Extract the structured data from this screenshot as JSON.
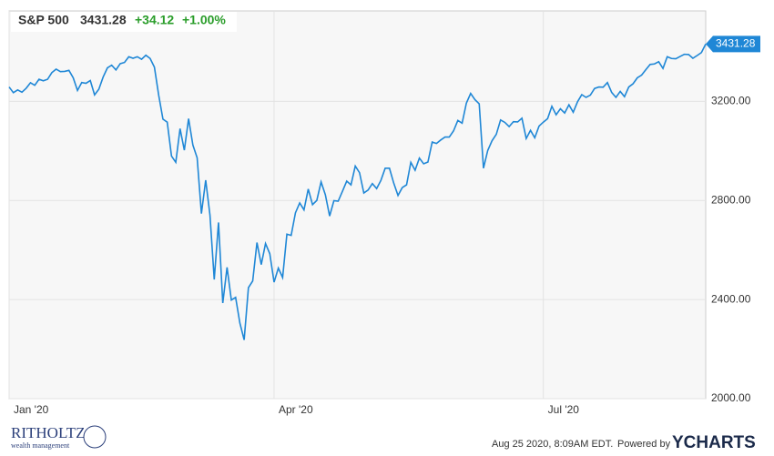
{
  "chart_data": {
    "type": "line",
    "title": "S&P 500",
    "price_change": "+34.12",
    "percent_change": "+1.00%",
    "series": [
      {
        "name": "S&P 500",
        "color": "#1f87d6",
        "values": [
          3258,
          3235,
          3246,
          3237,
          3253,
          3275,
          3265,
          3289,
          3283,
          3289,
          3316,
          3330,
          3320,
          3321,
          3325,
          3295,
          3244,
          3276,
          3273,
          3284,
          3226,
          3249,
          3298,
          3335,
          3346,
          3327,
          3352,
          3357,
          3380,
          3374,
          3380,
          3370,
          3386,
          3373,
          3338,
          3225,
          3128,
          3116,
          2979,
          2954,
          3090,
          3003,
          3130,
          3024,
          2972,
          2747,
          2882,
          2741,
          2481,
          2711,
          2386,
          2530,
          2398,
          2409,
          2305,
          2237,
          2448,
          2475,
          2630,
          2541,
          2626,
          2585,
          2470,
          2527,
          2489,
          2664,
          2659,
          2750,
          2790,
          2762,
          2846,
          2783,
          2800,
          2875,
          2823,
          2737,
          2799,
          2797,
          2837,
          2878,
          2863,
          2939,
          2912,
          2830,
          2842,
          2868,
          2848,
          2881,
          2930,
          2930,
          2870,
          2820,
          2852,
          2863,
          2954,
          2922,
          2971,
          2948,
          2955,
          3036,
          3030,
          3044,
          3056,
          3056,
          3081,
          3123,
          3112,
          3193,
          3232,
          3207,
          3190,
          2930,
          3002,
          3041,
          3067,
          3125,
          3115,
          3098,
          3118,
          3117,
          3132,
          3050,
          3083,
          3053,
          3100,
          3116,
          3130,
          3180,
          3146,
          3170,
          3153,
          3186,
          3156,
          3198,
          3227,
          3216,
          3225,
          3252,
          3258,
          3257,
          3276,
          3236,
          3216,
          3240,
          3219,
          3258,
          3271,
          3295,
          3306,
          3328,
          3349,
          3351,
          3360,
          3333,
          3380,
          3373,
          3372,
          3381,
          3390,
          3389,
          3374,
          3385,
          3397,
          3431.28
        ]
      }
    ],
    "xlim": [
      0,
      163
    ],
    "xticks": [
      {
        "value": 0,
        "label": "Jan '20"
      },
      {
        "value": 62,
        "label": "Apr '20"
      },
      {
        "value": 125,
        "label": "Jul '20"
      }
    ],
    "ylim": [
      2000,
      3565
    ],
    "yticks": [
      {
        "value": 2000,
        "label": "2000.00"
      },
      {
        "value": 2400,
        "label": "2400.00"
      },
      {
        "value": 2800,
        "label": "2800.00"
      },
      {
        "value": 3200,
        "label": "3200.00"
      }
    ],
    "grid": true,
    "timestamp": "Aug 25 2020, 8:09AM EDT.",
    "powered_by": "Powered by",
    "brand": "YCHARTS",
    "logo": {
      "name": "RITHOLTZ",
      "tagline": "wealth management"
    }
  }
}
